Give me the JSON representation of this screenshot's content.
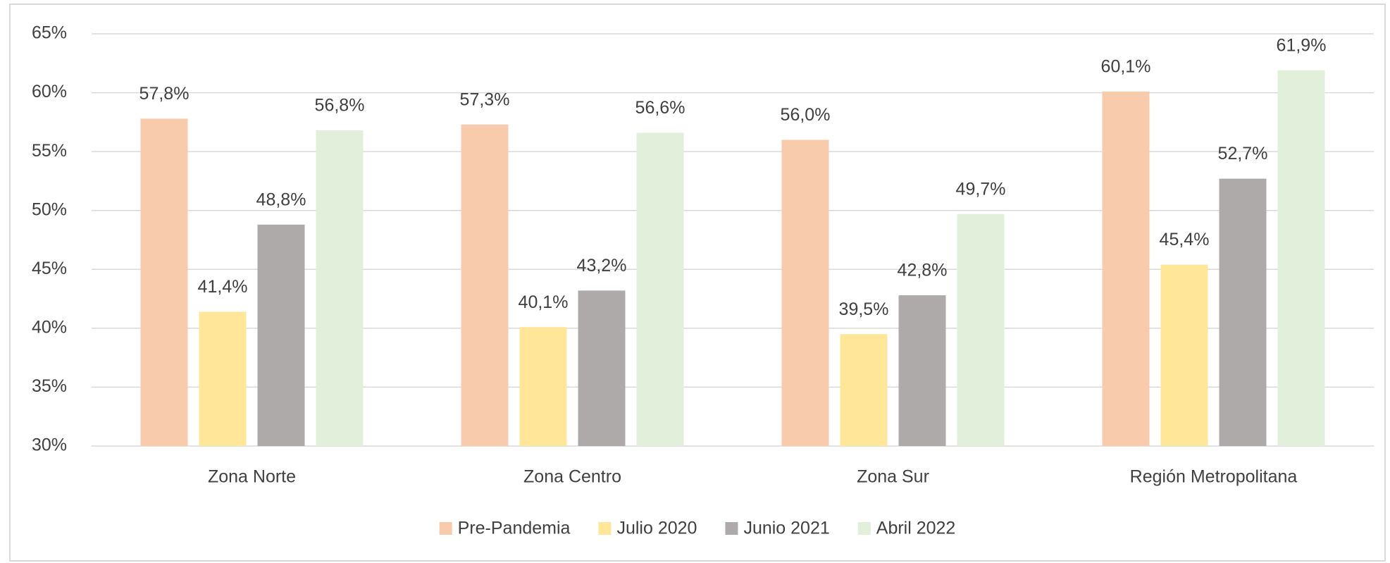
{
  "chart_data": {
    "type": "bar",
    "categories": [
      "Zona Norte",
      "Zona Centro",
      "Zona Sur",
      "Región Metropolitana"
    ],
    "series": [
      {
        "name": "Pre-Pandemia",
        "color": "#f8cbad",
        "values": [
          57.8,
          57.3,
          56.0,
          60.1
        ],
        "value_labels": [
          "57,8%",
          "57,3%",
          "56,0%",
          "60,1%"
        ]
      },
      {
        "name": "Julio 2020",
        "color": "#ffe699",
        "values": [
          41.4,
          40.1,
          39.5,
          45.4
        ],
        "value_labels": [
          "41,4%",
          "40,1%",
          "39,5%",
          "45,4%"
        ]
      },
      {
        "name": "Junio 2021",
        "color": "#aeaaaa",
        "values": [
          48.8,
          43.2,
          42.8,
          52.7
        ],
        "value_labels": [
          "48,8%",
          "43,2%",
          "42,8%",
          "52,7%"
        ]
      },
      {
        "name": "Abril 2022",
        "color": "#e2efda",
        "values": [
          56.8,
          56.6,
          49.7,
          61.9
        ],
        "value_labels": [
          "56,8%",
          "56,6%",
          "49,7%",
          "61,9%"
        ]
      }
    ],
    "ylim": [
      30,
      65
    ],
    "yticks": [
      {
        "value": 30,
        "label": "30%"
      },
      {
        "value": 35,
        "label": "35%"
      },
      {
        "value": 40,
        "label": "40%"
      },
      {
        "value": 45,
        "label": "45%"
      },
      {
        "value": 50,
        "label": "50%"
      },
      {
        "value": 55,
        "label": "55%"
      },
      {
        "value": 60,
        "label": "60%"
      },
      {
        "value": 65,
        "label": "65%"
      }
    ],
    "grid": true,
    "legend": "bottom"
  }
}
